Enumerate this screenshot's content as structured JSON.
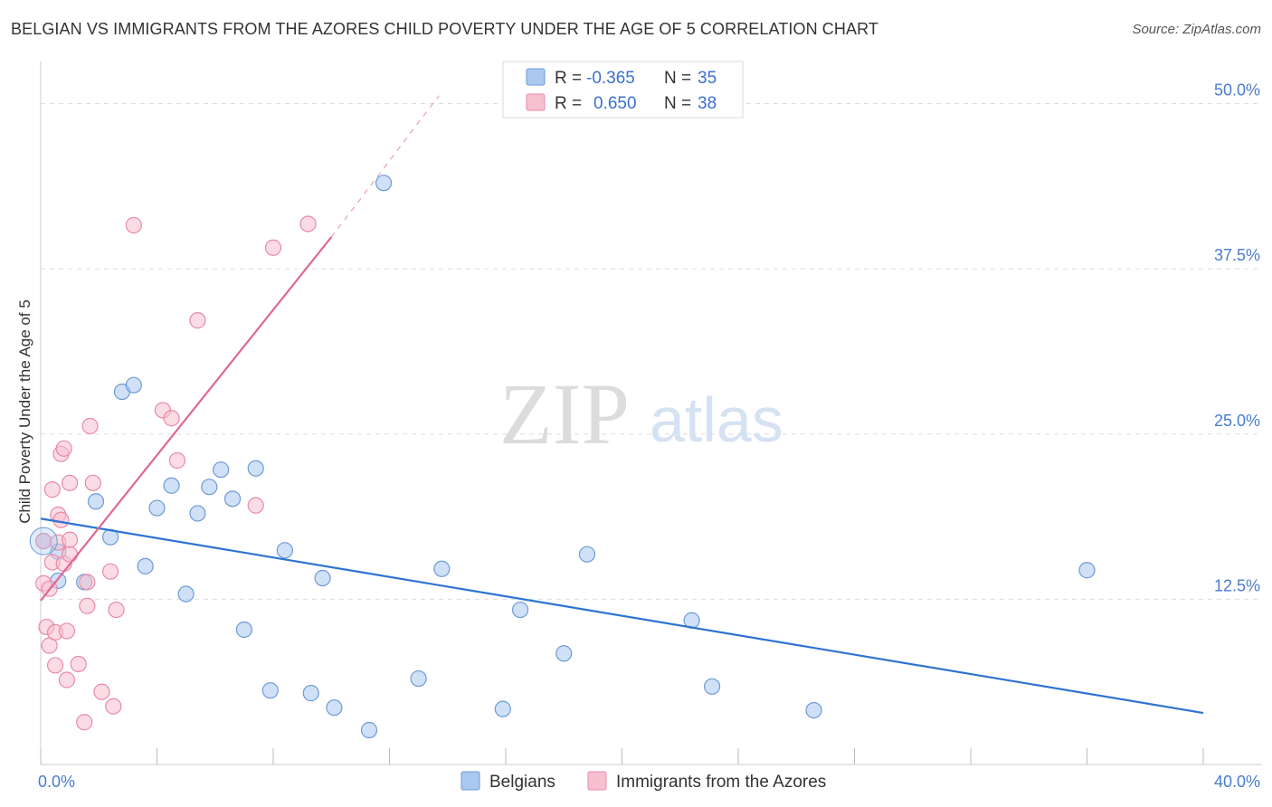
{
  "header": {
    "title": "BELGIAN VS IMMIGRANTS FROM THE AZORES CHILD POVERTY UNDER THE AGE OF 5 CORRELATION CHART",
    "source": "Source: ZipAtlas.com"
  },
  "watermark": {
    "zip": "ZIP",
    "atlas": "atlas"
  },
  "colors": {
    "belgians_fill": "#aac8f0",
    "belgians_stroke": "#6d9ad6",
    "belgians_line": "#2f73d0",
    "azores_fill": "#f7c0d0",
    "azores_stroke": "#e88aa6",
    "azores_line": "#e06890",
    "tick_label": "#4a7bd0",
    "grid": "#dddddd"
  },
  "legend_box": {
    "rows": [
      {
        "r_label": "R =",
        "r_value": "-0.365",
        "n_label": "N =",
        "n_value": "35"
      },
      {
        "r_label": "R =",
        "r_value": "0.650",
        "n_label": "N =",
        "n_value": "38"
      }
    ]
  },
  "chart_data": {
    "type": "scatter",
    "title": "BELGIAN VS IMMIGRANTS FROM THE AZORES CHILD POVERTY UNDER THE AGE OF 5 CORRELATION CHART",
    "xlabel": "",
    "ylabel": "Child Poverty Under the Age of 5",
    "xlim": [
      0,
      40
    ],
    "ylim": [
      0,
      52.5
    ],
    "x_tick_labels": [
      "0.0%",
      "40.0%"
    ],
    "y_ticks": [
      12.5,
      25.0,
      37.5,
      50.0
    ],
    "y_tick_labels": [
      "12.5%",
      "25.0%",
      "37.5%",
      "50.0%"
    ],
    "grid": true,
    "legend_position": "bottom",
    "series": [
      {
        "name": "Belgians",
        "r": -0.365,
        "n": 35,
        "trend": {
          "x": [
            0,
            40
          ],
          "y": [
            18.6,
            3.9
          ]
        },
        "points": [
          [
            0.1,
            16.9
          ],
          [
            0.6,
            16.1
          ],
          [
            0.6,
            13.9
          ],
          [
            1.5,
            13.8
          ],
          [
            1.9,
            19.9
          ],
          [
            2.4,
            17.2
          ],
          [
            2.8,
            28.2
          ],
          [
            3.2,
            28.7
          ],
          [
            3.6,
            15.0
          ],
          [
            4.0,
            19.4
          ],
          [
            4.5,
            21.1
          ],
          [
            5.0,
            12.9
          ],
          [
            5.4,
            19.0
          ],
          [
            5.8,
            21.0
          ],
          [
            6.2,
            22.3
          ],
          [
            6.6,
            20.1
          ],
          [
            7.0,
            10.2
          ],
          [
            7.4,
            22.4
          ],
          [
            7.9,
            5.6
          ],
          [
            8.4,
            16.2
          ],
          [
            9.3,
            5.4
          ],
          [
            9.7,
            14.1
          ],
          [
            10.1,
            4.3
          ],
          [
            11.3,
            2.6
          ],
          [
            11.8,
            44.0
          ],
          [
            13.0,
            6.5
          ],
          [
            13.8,
            14.8
          ],
          [
            15.9,
            4.2
          ],
          [
            16.5,
            11.7
          ],
          [
            18.0,
            8.4
          ],
          [
            18.8,
            15.9
          ],
          [
            22.4,
            10.9
          ],
          [
            23.1,
            5.9
          ],
          [
            26.6,
            4.1
          ],
          [
            36.0,
            14.7
          ]
        ]
      },
      {
        "name": "Immigrants from the Azores",
        "r": 0.65,
        "n": 38,
        "trend": {
          "x": [
            0,
            10
          ],
          "y": [
            12.4,
            39.9
          ]
        },
        "trend_dashed": {
          "x": [
            10,
            13.7
          ],
          "y": [
            39.9,
            50.6
          ]
        },
        "points": [
          [
            0.1,
            16.9
          ],
          [
            0.1,
            13.7
          ],
          [
            0.2,
            10.4
          ],
          [
            0.3,
            13.3
          ],
          [
            0.3,
            9.0
          ],
          [
            0.4,
            15.3
          ],
          [
            0.4,
            20.8
          ],
          [
            0.5,
            7.5
          ],
          [
            0.5,
            10.0
          ],
          [
            0.6,
            16.8
          ],
          [
            0.6,
            18.9
          ],
          [
            0.7,
            18.5
          ],
          [
            0.7,
            23.5
          ],
          [
            0.8,
            23.9
          ],
          [
            0.8,
            15.2
          ],
          [
            0.9,
            6.4
          ],
          [
            0.9,
            10.1
          ],
          [
            1.0,
            21.3
          ],
          [
            1.0,
            17.0
          ],
          [
            1.0,
            15.9
          ],
          [
            1.3,
            7.6
          ],
          [
            1.5,
            3.2
          ],
          [
            1.6,
            13.8
          ],
          [
            1.6,
            12.0
          ],
          [
            1.7,
            25.6
          ],
          [
            1.8,
            21.3
          ],
          [
            2.1,
            5.5
          ],
          [
            2.4,
            14.6
          ],
          [
            2.5,
            4.4
          ],
          [
            2.6,
            11.7
          ],
          [
            3.2,
            40.8
          ],
          [
            4.2,
            26.8
          ],
          [
            4.5,
            26.2
          ],
          [
            4.7,
            23.0
          ],
          [
            5.4,
            33.6
          ],
          [
            7.4,
            19.6
          ],
          [
            8.0,
            39.1
          ],
          [
            9.2,
            40.9
          ]
        ]
      }
    ]
  },
  "bottom_legend": {
    "items": [
      {
        "label": "Belgians"
      },
      {
        "label": "Immigrants from the Azores"
      }
    ]
  }
}
